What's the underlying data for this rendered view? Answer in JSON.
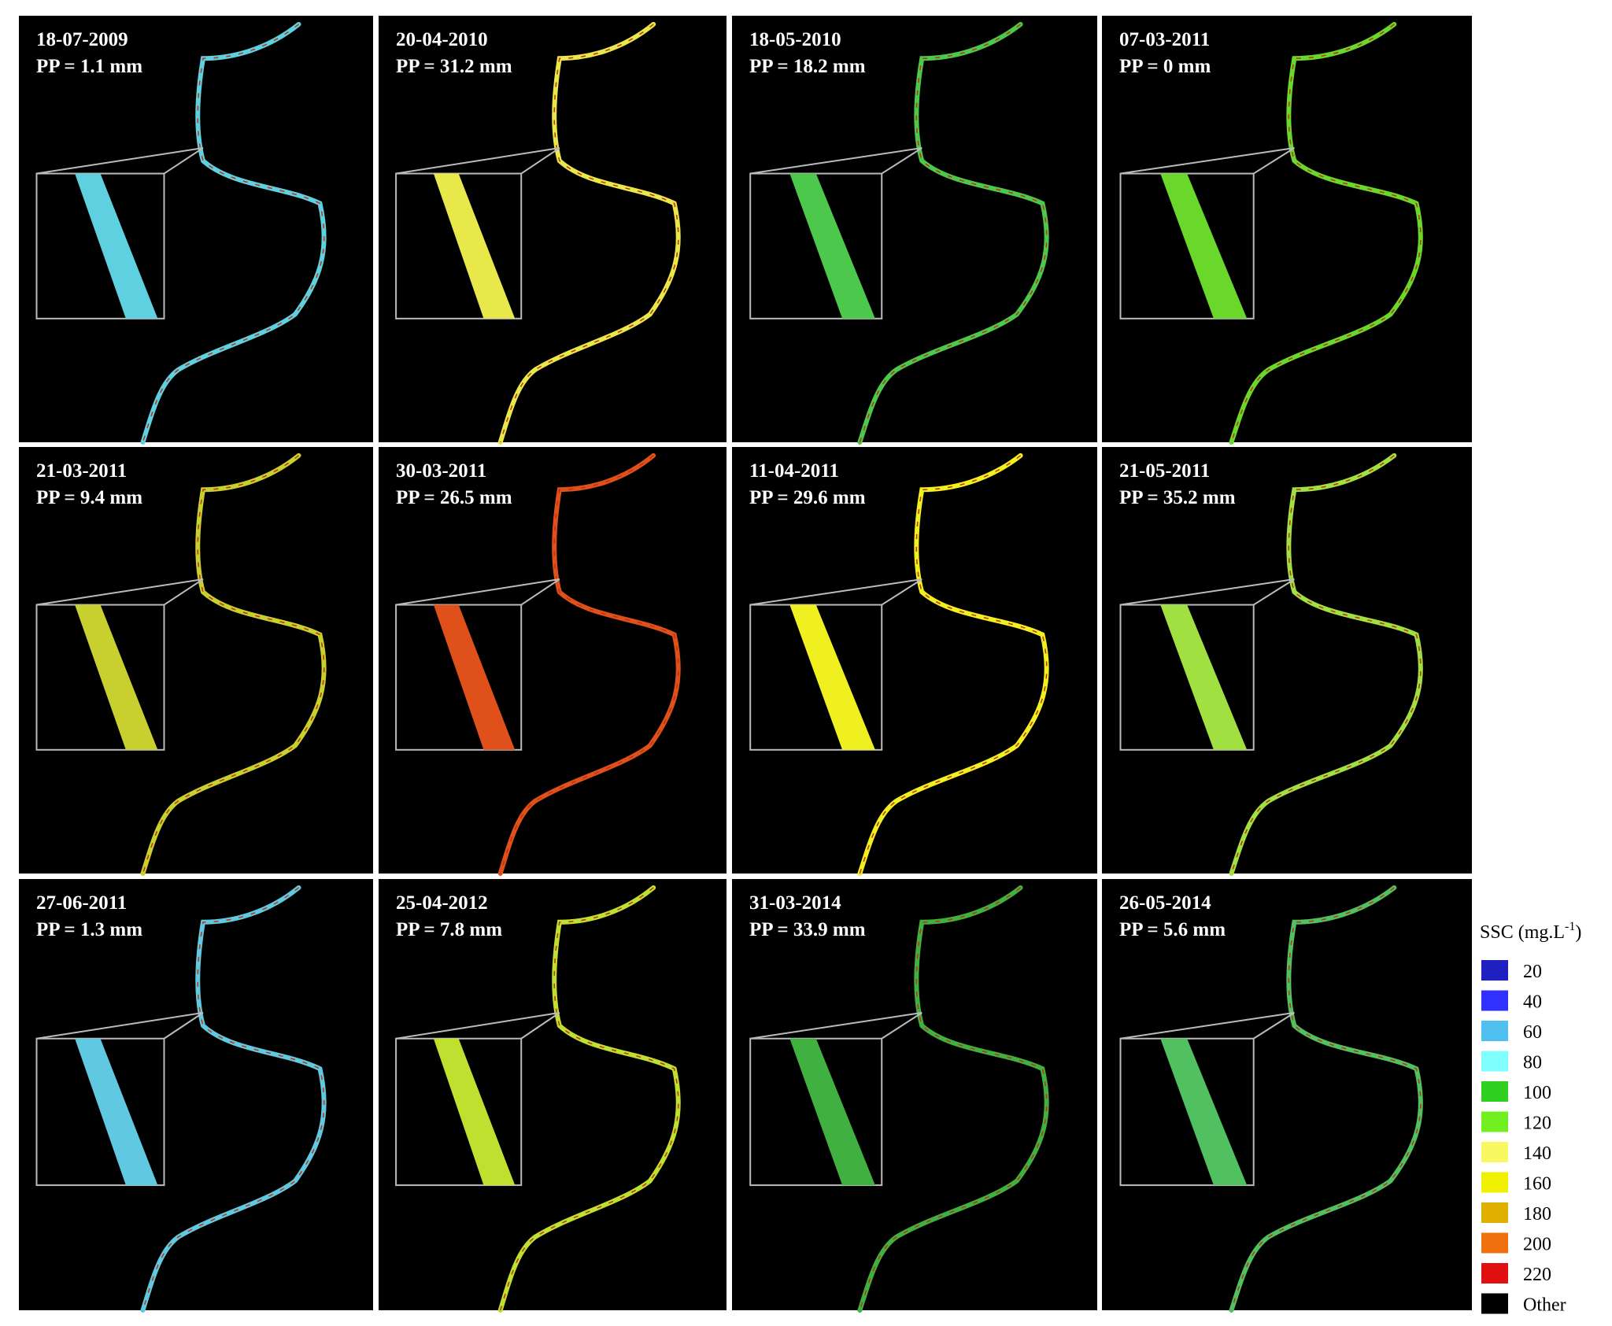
{
  "panels": [
    {
      "date": "18-07-2009",
      "precipitation": "PP = 1.1 mm",
      "color": "#5fd0e0"
    },
    {
      "date": "20-04-2010",
      "precipitation": "PP = 31.2 mm",
      "color": "#e8e84a"
    },
    {
      "date": "18-05-2010",
      "precipitation": "PP = 18.2 mm",
      "color": "#4cc84c"
    },
    {
      "date": "07-03-2011",
      "precipitation": "PP = 0 mm",
      "color": "#6ad82a"
    },
    {
      "date": "21-03-2011",
      "precipitation": "PP = 9.4 mm",
      "color": "#c8d030"
    },
    {
      "date": "30-03-2011",
      "precipitation": "PP = 26.5 mm",
      "color": "#e0501a"
    },
    {
      "date": "11-04-2011",
      "precipitation": "PP = 29.6 mm",
      "color": "#f0f020"
    },
    {
      "date": "21-05-2011",
      "precipitation": "PP = 35.2 mm",
      "color": "#a0e040"
    },
    {
      "date": "27-06-2011",
      "precipitation": "PP = 1.3 mm",
      "color": "#60c8e0"
    },
    {
      "date": "25-04-2012",
      "precipitation": "PP = 7.8 mm",
      "color": "#c0e030"
    },
    {
      "date": "31-03-2014",
      "precipitation": "PP = 33.9 mm",
      "color": "#40b040"
    },
    {
      "date": "26-05-2014",
      "precipitation": "PP = 5.6 mm",
      "color": "#50c060"
    }
  ],
  "legend": {
    "title": "SSC (mg.L",
    "title_exponent": "-1",
    "title_end": ")",
    "items": [
      {
        "label": "20",
        "color": "#2020c0"
      },
      {
        "label": "40",
        "color": "#3030ff"
      },
      {
        "label": "60",
        "color": "#50c0f0"
      },
      {
        "label": "80",
        "color": "#80ffff"
      },
      {
        "label": "100",
        "color": "#30d020"
      },
      {
        "label": "120",
        "color": "#70f020"
      },
      {
        "label": "140",
        "color": "#f8f860"
      },
      {
        "label": "160",
        "color": "#f0f000"
      },
      {
        "label": "180",
        "color": "#e0b000"
      },
      {
        "label": "200",
        "color": "#f07010"
      },
      {
        "label": "220",
        "color": "#e01010"
      },
      {
        "label": "Other",
        "color": "#000000"
      }
    ]
  }
}
